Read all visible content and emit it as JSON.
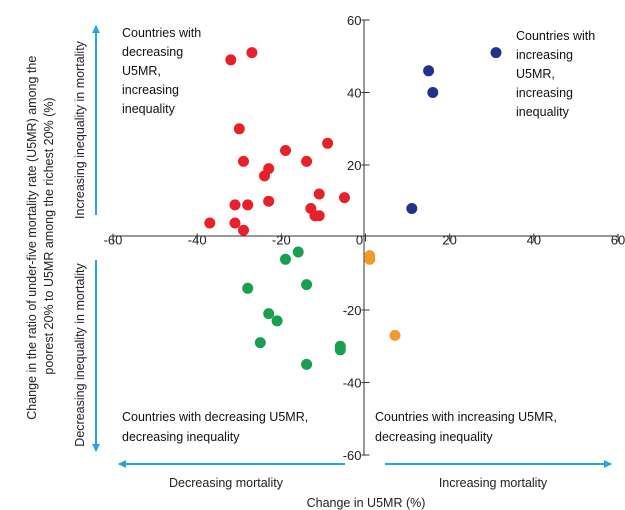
{
  "chart_data": {
    "type": "scatter",
    "xlabel": "Change in U5MR  (%)",
    "ylabel_lines": [
      "Change in the ratio of under-five mortality rate (U5MR) among the",
      "poorest 20% to U5MR among the richest 20% (%)"
    ],
    "xlim": [
      -60,
      60
    ],
    "ylim": [
      -60,
      60
    ],
    "x_ticks": [
      -60,
      -40,
      -20,
      0,
      20,
      40,
      60
    ],
    "y_ticks": [
      -60,
      -40,
      -20,
      20,
      40,
      60
    ],
    "grid": false,
    "quadrant_labels": {
      "top_left": [
        "Countries with",
        "decreasing",
        "U5MR,",
        "increasing",
        "inequality"
      ],
      "top_right": [
        "Countries with",
        "increasing",
        "U5MR,",
        "increasing",
        "inequality"
      ],
      "bottom_left": [
        "Countries with decreasing U5MR,",
        "decreasing inequality"
      ],
      "bottom_right": [
        "Countries with  increasing U5MR,",
        "decreasing inequality"
      ]
    },
    "arrow_labels": {
      "increasing_inequality": "Increasing inequality in mortality",
      "decreasing_inequality": "Decreasing inequality in mortality",
      "decreasing_mortality": "Decreasing mortality",
      "increasing_mortality": "Increasing mortality"
    },
    "series": [
      {
        "color": "#e8202a",
        "points": [
          [
            -27,
            51
          ],
          [
            -32,
            49
          ],
          [
            -30,
            30
          ],
          [
            -29,
            21
          ],
          [
            -24,
            17
          ],
          [
            -23,
            19
          ],
          [
            -19,
            24
          ],
          [
            -14,
            21
          ],
          [
            -9,
            26
          ],
          [
            -11,
            12
          ],
          [
            -5,
            11
          ],
          [
            -28,
            9
          ],
          [
            -23,
            10
          ],
          [
            -31,
            9
          ],
          [
            -13,
            8
          ],
          [
            -12,
            6
          ],
          [
            -11,
            6
          ],
          [
            -37,
            4
          ],
          [
            -31,
            4
          ],
          [
            -29,
            2
          ]
        ]
      },
      {
        "color": "#23308f",
        "points": [
          [
            31,
            51
          ],
          [
            15,
            46
          ],
          [
            16,
            40
          ],
          [
            11,
            8
          ]
        ]
      },
      {
        "color": "#17a050",
        "points": [
          [
            -16,
            -4
          ],
          [
            -19,
            -6
          ],
          [
            -28,
            -14
          ],
          [
            -14,
            -13
          ],
          [
            -23,
            -21
          ],
          [
            -21,
            -23
          ],
          [
            -25,
            -29
          ],
          [
            -6,
            -30
          ],
          [
            -6,
            -31
          ],
          [
            -14,
            -35
          ]
        ]
      },
      {
        "color": "#f39a2c",
        "points": [
          [
            1,
            -5
          ],
          [
            1,
            -6
          ],
          [
            7,
            -27
          ]
        ]
      }
    ]
  }
}
